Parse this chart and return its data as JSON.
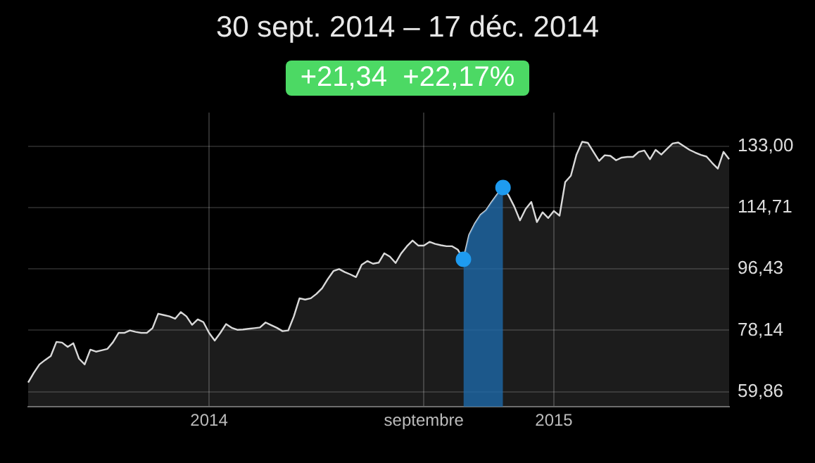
{
  "chart_data": {
    "type": "area",
    "title": "30 sept. 2014 – 17 déc. 2014",
    "annotations": [
      "+21,34  +22,17%"
    ],
    "categories": [
      null,
      null,
      null,
      null,
      null,
      null,
      null,
      null,
      null,
      null,
      null,
      null,
      null,
      null,
      null,
      null,
      null,
      null,
      null,
      null,
      null,
      null,
      null,
      null,
      null,
      null,
      null,
      null,
      null,
      null,
      null,
      null,
      "2014",
      null,
      null,
      null,
      null,
      null,
      null,
      null,
      null,
      null,
      null,
      null,
      null,
      null,
      null,
      null,
      null,
      null,
      null,
      null,
      null,
      null,
      null,
      null,
      null,
      null,
      null,
      null,
      null,
      null,
      null,
      null,
      null,
      null,
      null,
      null,
      null,
      null,
      "septembre",
      null,
      null,
      null,
      null,
      null,
      null,
      null,
      null,
      null,
      null,
      null,
      null,
      null,
      null,
      null,
      null,
      null,
      null,
      null,
      null,
      null,
      null,
      "2015",
      null,
      null,
      null,
      null,
      null,
      null,
      null,
      null,
      null,
      null,
      null,
      null,
      null,
      null,
      null,
      null,
      null,
      null,
      null,
      null,
      null,
      null,
      null,
      null,
      null,
      null,
      null,
      null,
      null,
      null,
      null
    ],
    "series": [
      {
        "color": "#d9d9d9",
        "values": [
          62.6,
          65.5,
          68.0,
          69.3,
          70.5,
          74.7,
          74.5,
          73.2,
          74.3,
          69.7,
          68.0,
          72.4,
          71.8,
          72.2,
          72.6,
          74.6,
          77.4,
          77.4,
          78.1,
          77.7,
          77.4,
          77.4,
          78.8,
          83.1,
          82.7,
          82.3,
          81.6,
          83.6,
          82.3,
          79.8,
          81.4,
          80.6,
          77.4,
          75.1,
          77.4,
          80.0,
          78.9,
          78.3,
          78.4,
          78.6,
          78.8,
          79.0,
          80.5,
          79.7,
          78.9,
          77.9,
          78.1,
          82.3,
          87.7,
          87.3,
          87.7,
          89.0,
          90.7,
          93.4,
          95.8,
          96.4,
          95.5,
          94.8,
          94.0,
          97.7,
          98.8,
          98.0,
          98.3,
          101.1,
          100.1,
          98.2,
          101.1,
          103.2,
          104.9,
          103.4,
          103.4,
          104.5,
          103.9,
          103.5,
          103.2,
          103.2,
          102.2,
          99.3,
          106.6,
          109.9,
          112.5,
          113.9,
          116.4,
          118.7,
          120.7,
          118.3,
          115.0,
          110.9,
          114.3,
          116.4,
          110.4,
          113.3,
          111.6,
          113.7,
          112.3,
          122.3,
          124.2,
          130.5,
          134.3,
          134.0,
          131.3,
          128.6,
          130.3,
          130.1,
          128.8,
          129.6,
          129.8,
          129.8,
          131.3,
          131.7,
          129.1,
          131.9,
          130.5,
          132.2,
          133.8,
          134.1,
          133.0,
          131.9,
          131.1,
          130.4,
          129.9,
          128.0,
          126.3,
          131.3,
          129.1
        ]
      },
      {
        "type": "area",
        "color": "#1c6cb0",
        "values": [
          null,
          null,
          null,
          null,
          null,
          null,
          null,
          null,
          null,
          null,
          null,
          null,
          null,
          null,
          null,
          null,
          null,
          null,
          null,
          null,
          null,
          null,
          null,
          null,
          null,
          null,
          null,
          null,
          null,
          null,
          null,
          null,
          null,
          null,
          null,
          null,
          null,
          null,
          null,
          null,
          null,
          null,
          null,
          null,
          null,
          null,
          null,
          null,
          null,
          null,
          null,
          null,
          null,
          null,
          null,
          null,
          null,
          null,
          null,
          null,
          null,
          null,
          null,
          null,
          null,
          null,
          null,
          null,
          null,
          null,
          null,
          null,
          null,
          null,
          null,
          null,
          null,
          99.3,
          106.6,
          109.9,
          112.5,
          113.9,
          116.4,
          118.7,
          120.7,
          null,
          null,
          null,
          null,
          null,
          null,
          null,
          null,
          null,
          null,
          null,
          null,
          null,
          null,
          null,
          null,
          null,
          null,
          null,
          null,
          null,
          null,
          null,
          null,
          null,
          null,
          null,
          null,
          null,
          null,
          null,
          null,
          null,
          null,
          null,
          null,
          null,
          null,
          null,
          null
        ]
      },
      {
        "type": "scatter",
        "color": "#1e9bf0",
        "marker": "circle",
        "values": [
          null,
          null,
          null,
          null,
          null,
          null,
          null,
          null,
          null,
          null,
          null,
          null,
          null,
          null,
          null,
          null,
          null,
          null,
          null,
          null,
          null,
          null,
          null,
          null,
          null,
          null,
          null,
          null,
          null,
          null,
          null,
          null,
          null,
          null,
          null,
          null,
          null,
          null,
          null,
          null,
          null,
          null,
          null,
          null,
          null,
          null,
          null,
          null,
          null,
          null,
          null,
          null,
          null,
          null,
          null,
          null,
          null,
          null,
          null,
          null,
          null,
          null,
          null,
          null,
          null,
          null,
          null,
          null,
          null,
          null,
          null,
          null,
          null,
          null,
          null,
          null,
          null,
          99.3,
          null,
          null,
          null,
          null,
          null,
          null,
          120.7,
          null,
          null,
          null,
          null,
          null,
          null,
          null,
          null,
          null,
          null,
          null,
          null,
          null,
          null,
          null,
          null,
          null,
          null,
          null,
          null,
          null,
          null,
          null,
          null,
          null,
          null,
          null,
          null,
          null,
          null,
          null,
          null,
          null,
          null,
          null,
          null,
          null,
          null,
          null,
          null
        ]
      }
    ],
    "ylim": [
      55.4,
      143
    ],
    "yticks": [
      {
        "value": 59.86,
        "label": "59,86"
      },
      {
        "value": 78.14,
        "label": "78,14"
      },
      {
        "value": 96.43,
        "label": "96,43"
      },
      {
        "value": 114.71,
        "label": "114,71"
      },
      {
        "value": 133,
        "label": "133,00"
      }
    ],
    "grid": true,
    "legend": false
  }
}
